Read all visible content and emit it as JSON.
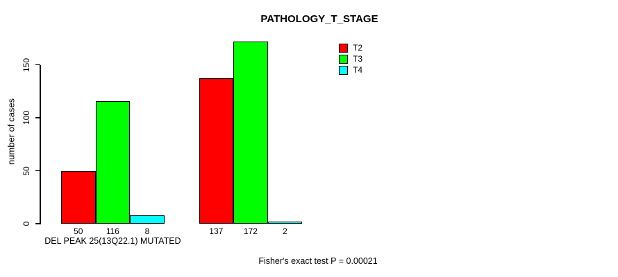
{
  "chart_data": {
    "type": "bar",
    "title": "PATHOLOGY_T_STAGE",
    "ylabel": "number of cases",
    "xlabel": "",
    "categories": [
      "DEL PEAK 25(13Q22.1) MUTATED",
      ""
    ],
    "series": [
      {
        "name": "T2",
        "color": "#FF0000",
        "values": [
          50,
          137
        ]
      },
      {
        "name": "T3",
        "color": "#00FF00",
        "values": [
          116,
          172
        ]
      },
      {
        "name": "T4",
        "color": "#00FFFF",
        "values": [
          8,
          2
        ]
      }
    ],
    "yticks": [
      0,
      50,
      100,
      150
    ],
    "ylim": [
      0,
      172
    ],
    "grid": false,
    "legend_position": "top-right",
    "bar_value_labels_shown": true,
    "annotation": "Fisher's exact test P = 0.00021"
  }
}
